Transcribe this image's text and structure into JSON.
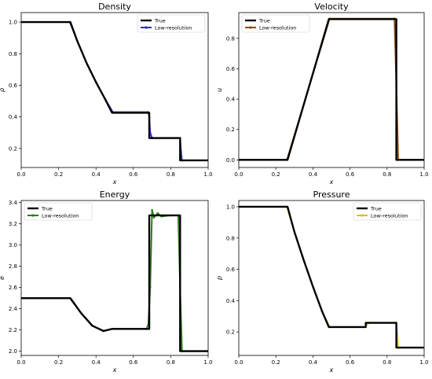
{
  "chart_data": [
    {
      "type": "line",
      "title": "Density",
      "xlabel": "x",
      "ylabel": "ρ",
      "xlim": [
        0,
        1.0
      ],
      "ylim": [
        0.08,
        1.06
      ],
      "xticks": [
        "0.0",
        "0.2",
        "0.4",
        "0.6",
        "0.8",
        "1.0"
      ],
      "yticks": [
        "0.2",
        "0.4",
        "0.6",
        "0.8",
        "1.0"
      ],
      "yticks_values": [
        0.2,
        0.4,
        0.6,
        0.8,
        1.0
      ],
      "legend": "top-right",
      "series": [
        {
          "name": "True",
          "color": "#000000",
          "marker": "none",
          "x": [
            0,
            0.263,
            0.3,
            0.35,
            0.4,
            0.45,
            0.486,
            0.685,
            0.685,
            0.85,
            0.85,
            1.0
          ],
          "y": [
            1.0,
            1.0,
            0.88,
            0.74,
            0.62,
            0.51,
            0.426,
            0.426,
            0.266,
            0.266,
            0.125,
            0.125
          ]
        },
        {
          "name": "Low-resolution",
          "color": "#2a2ad8",
          "marker": "dot",
          "x": [
            0,
            0.26,
            0.3,
            0.35,
            0.4,
            0.45,
            0.49,
            0.68,
            0.685,
            0.69,
            0.7,
            0.85,
            0.855,
            0.86,
            1.0
          ],
          "y": [
            1.0,
            1.0,
            0.88,
            0.74,
            0.62,
            0.51,
            0.43,
            0.43,
            0.4,
            0.3,
            0.266,
            0.266,
            0.18,
            0.125,
            0.125
          ]
        }
      ]
    },
    {
      "type": "line",
      "title": "Velocity",
      "xlabel": "x",
      "ylabel": "u",
      "xlim": [
        0,
        1.0
      ],
      "ylim": [
        -0.05,
        0.97
      ],
      "xticks": [
        "0.0",
        "0.2",
        "0.4",
        "0.6",
        "0.8",
        "1.0"
      ],
      "yticks": [
        "0.0",
        "0.2",
        "0.4",
        "0.6",
        "0.8"
      ],
      "yticks_values": [
        0.0,
        0.2,
        0.4,
        0.6,
        0.8
      ],
      "legend": "top-left",
      "series": [
        {
          "name": "True",
          "color": "#000000",
          "marker": "none",
          "x": [
            0,
            0.263,
            0.486,
            0.85,
            0.85,
            1.0
          ],
          "y": [
            0,
            0,
            0.927,
            0.927,
            0,
            0
          ]
        },
        {
          "name": "Low-resolution",
          "color": "#8b4a0f",
          "marker": "dot",
          "x": [
            0,
            0.26,
            0.49,
            0.84,
            0.85,
            0.86,
            1.0
          ],
          "y": [
            0,
            0,
            0.93,
            0.93,
            0.5,
            0.0,
            0
          ]
        }
      ]
    },
    {
      "type": "line",
      "title": "Energy",
      "xlabel": "x",
      "ylabel": "e",
      "xlim": [
        0,
        1.0
      ],
      "ylim": [
        1.96,
        3.42
      ],
      "xticks": [
        "0.0",
        "0.2",
        "0.4",
        "0.6",
        "0.8",
        "1.0"
      ],
      "yticks": [
        "2.0",
        "2.2",
        "2.4",
        "2.6",
        "2.8",
        "3.0",
        "3.2",
        "3.4"
      ],
      "yticks_values": [
        2.0,
        2.2,
        2.4,
        2.6,
        2.8,
        3.0,
        3.2,
        3.4
      ],
      "legend": "top-left",
      "series": [
        {
          "name": "True",
          "color": "#000000",
          "marker": "none",
          "x": [
            0,
            0.263,
            0.32,
            0.38,
            0.44,
            0.486,
            0.685,
            0.685,
            0.85,
            0.85,
            1.0
          ],
          "y": [
            2.5,
            2.5,
            2.36,
            2.24,
            2.19,
            2.21,
            2.21,
            3.28,
            3.28,
            2.0,
            2.0
          ]
        },
        {
          "name": "Low-resolution",
          "color": "#2e7d1a",
          "marker": "dot",
          "x": [
            0,
            0.26,
            0.32,
            0.38,
            0.44,
            0.49,
            0.67,
            0.68,
            0.69,
            0.7,
            0.71,
            0.73,
            0.75,
            0.8,
            0.84,
            0.85,
            0.86,
            1.0
          ],
          "y": [
            2.5,
            2.5,
            2.36,
            2.24,
            2.19,
            2.21,
            2.21,
            2.25,
            2.6,
            3.33,
            3.26,
            3.3,
            3.27,
            3.28,
            3.28,
            2.6,
            2.0,
            2.0
          ]
        }
      ]
    },
    {
      "type": "line",
      "title": "Pressure",
      "xlabel": "x",
      "ylabel": "p",
      "xlim": [
        0,
        1.0
      ],
      "ylim": [
        0.05,
        1.04
      ],
      "xticks": [
        "0.0",
        "0.2",
        "0.4",
        "0.6",
        "0.8",
        "1.0"
      ],
      "yticks": [
        "0.2",
        "0.4",
        "0.6",
        "0.8",
        "1.0"
      ],
      "yticks_values": [
        0.2,
        0.4,
        0.6,
        0.8,
        1.0
      ],
      "legend": "top-right",
      "series": [
        {
          "name": "True",
          "color": "#000000",
          "marker": "none",
          "x": [
            0,
            0.263,
            0.3,
            0.35,
            0.4,
            0.45,
            0.486,
            0.685,
            0.685,
            0.85,
            0.85,
            1.0
          ],
          "y": [
            1.0,
            1.0,
            0.84,
            0.66,
            0.49,
            0.33,
            0.231,
            0.231,
            0.258,
            0.258,
            0.1,
            0.1
          ]
        },
        {
          "name": "Low-resolution",
          "color": "#d8c21a",
          "marker": "dot",
          "x": [
            0,
            0.26,
            0.3,
            0.35,
            0.4,
            0.45,
            0.49,
            0.68,
            0.69,
            0.7,
            0.85,
            0.855,
            0.86,
            1.0
          ],
          "y": [
            1.0,
            1.0,
            0.84,
            0.66,
            0.49,
            0.33,
            0.231,
            0.231,
            0.245,
            0.258,
            0.258,
            0.18,
            0.1,
            0.1
          ]
        }
      ]
    }
  ]
}
